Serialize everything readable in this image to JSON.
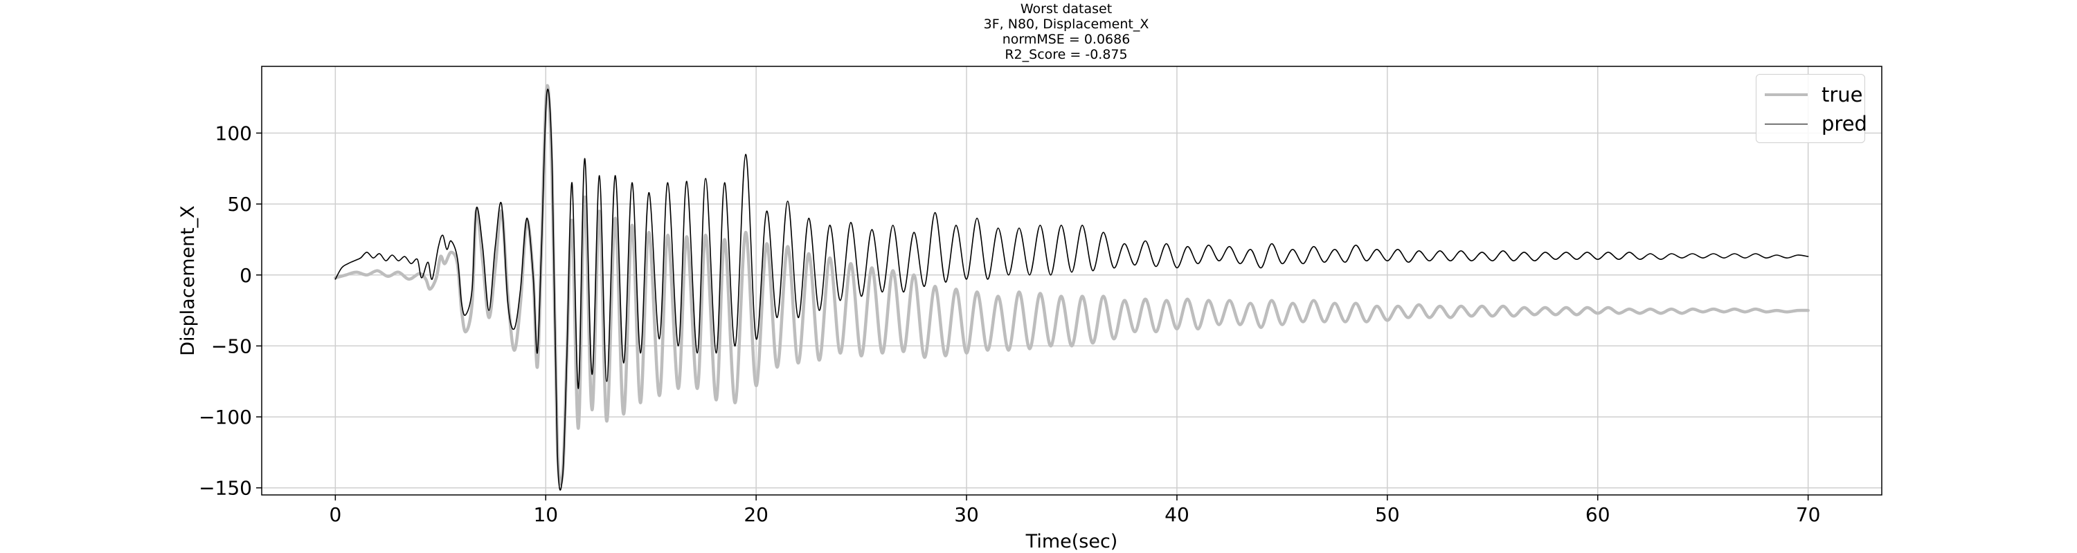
{
  "chart_data": {
    "type": "line",
    "title_lines": [
      "Worst dataset",
      "3F, N80, Displacement_X",
      "normMSE = 0.0686",
      "R2_Score = -0.875"
    ],
    "xlabel": "Time(sec)",
    "ylabel": "Displacement_X",
    "xlim": [
      -3.5,
      73.5
    ],
    "ylim": [
      -155,
      147
    ],
    "xticks": [
      0,
      10,
      20,
      30,
      40,
      50,
      60,
      70
    ],
    "yticks": [
      -150,
      -100,
      -50,
      0,
      50,
      100
    ],
    "ytick_labels": [
      "−150",
      "−100",
      "−50",
      "0",
      "50",
      "100"
    ],
    "grid": true,
    "legend_position": "top-right",
    "series": [
      {
        "name": "true",
        "color": "#bdbdbd",
        "points": [
          [
            0,
            -2
          ],
          [
            0.5,
            0
          ],
          [
            1,
            2
          ],
          [
            1.5,
            0
          ],
          [
            2,
            3
          ],
          [
            2.5,
            -1
          ],
          [
            3,
            2
          ],
          [
            3.5,
            -3
          ],
          [
            4,
            1
          ],
          [
            4.3,
            -3
          ],
          [
            4.5,
            -10
          ],
          [
            4.8,
            -2
          ],
          [
            5,
            13
          ],
          [
            5.2,
            8
          ],
          [
            5.5,
            16
          ],
          [
            5.8,
            8
          ],
          [
            6,
            -25
          ],
          [
            6.2,
            -40
          ],
          [
            6.5,
            -20
          ],
          [
            6.7,
            45
          ],
          [
            7,
            10
          ],
          [
            7.3,
            -30
          ],
          [
            7.6,
            5
          ],
          [
            7.9,
            45
          ],
          [
            8.2,
            -15
          ],
          [
            8.5,
            -53
          ],
          [
            8.8,
            -20
          ],
          [
            9.1,
            38
          ],
          [
            9.4,
            0
          ],
          [
            9.6,
            -65
          ],
          [
            9.8,
            20
          ],
          [
            10.05,
            132
          ],
          [
            10.3,
            70
          ],
          [
            10.55,
            -120
          ],
          [
            10.8,
            -140
          ],
          [
            11.0,
            -60
          ],
          [
            11.25,
            38
          ],
          [
            11.55,
            -108
          ],
          [
            11.85,
            55
          ],
          [
            12.2,
            -95
          ],
          [
            12.55,
            45
          ],
          [
            12.9,
            -103
          ],
          [
            13.3,
            40
          ],
          [
            13.7,
            -98
          ],
          [
            14.1,
            35
          ],
          [
            14.5,
            -90
          ],
          [
            14.9,
            30
          ],
          [
            15.4,
            -85
          ],
          [
            15.8,
            28
          ],
          [
            16.3,
            -80
          ],
          [
            16.7,
            27
          ],
          [
            17.2,
            -80
          ],
          [
            17.6,
            28
          ],
          [
            18.1,
            -88
          ],
          [
            18.5,
            25
          ],
          [
            19.0,
            -90
          ],
          [
            19.5,
            30
          ],
          [
            20.0,
            -78
          ],
          [
            20.5,
            22
          ],
          [
            21.0,
            -65
          ],
          [
            21.5,
            20
          ],
          [
            22.0,
            -62
          ],
          [
            22.5,
            15
          ],
          [
            23.0,
            -60
          ],
          [
            23.5,
            12
          ],
          [
            24.0,
            -55
          ],
          [
            24.5,
            8
          ],
          [
            25.0,
            -57
          ],
          [
            25.5,
            5
          ],
          [
            26.0,
            -55
          ],
          [
            26.5,
            3
          ],
          [
            27.0,
            -54
          ],
          [
            27.5,
            0
          ],
          [
            28.0,
            -58
          ],
          [
            28.5,
            -8
          ],
          [
            29.0,
            -57
          ],
          [
            29.5,
            -10
          ],
          [
            30.0,
            -55
          ],
          [
            30.5,
            -12
          ],
          [
            31.0,
            -53
          ],
          [
            31.5,
            -15
          ],
          [
            32.0,
            -53
          ],
          [
            32.5,
            -12
          ],
          [
            33.0,
            -52
          ],
          [
            33.5,
            -13
          ],
          [
            34.0,
            -50
          ],
          [
            34.5,
            -15
          ],
          [
            35.0,
            -50
          ],
          [
            35.5,
            -15
          ],
          [
            36.0,
            -48
          ],
          [
            36.5,
            -15
          ],
          [
            37.0,
            -45
          ],
          [
            37.5,
            -18
          ],
          [
            38.0,
            -40
          ],
          [
            38.5,
            -17
          ],
          [
            39.0,
            -40
          ],
          [
            39.5,
            -18
          ],
          [
            40.0,
            -38
          ],
          [
            40.5,
            -17
          ],
          [
            41.0,
            -38
          ],
          [
            41.5,
            -18
          ],
          [
            42.0,
            -35
          ],
          [
            42.5,
            -18
          ],
          [
            43.0,
            -35
          ],
          [
            43.5,
            -20
          ],
          [
            44.0,
            -37
          ],
          [
            44.5,
            -18
          ],
          [
            45.0,
            -35
          ],
          [
            45.5,
            -20
          ],
          [
            46.0,
            -33
          ],
          [
            46.5,
            -18
          ],
          [
            47.0,
            -33
          ],
          [
            47.5,
            -20
          ],
          [
            48.0,
            -33
          ],
          [
            48.5,
            -20
          ],
          [
            49.0,
            -33
          ],
          [
            49.5,
            -22
          ],
          [
            50.0,
            -32
          ],
          [
            50.5,
            -22
          ],
          [
            51.0,
            -30
          ],
          [
            51.5,
            -21
          ],
          [
            52.0,
            -30
          ],
          [
            52.5,
            -22
          ],
          [
            53.0,
            -30
          ],
          [
            53.5,
            -22
          ],
          [
            54.0,
            -29
          ],
          [
            54.5,
            -22
          ],
          [
            55.0,
            -29
          ],
          [
            55.5,
            -22
          ],
          [
            56.0,
            -29
          ],
          [
            56.5,
            -23
          ],
          [
            57.0,
            -28
          ],
          [
            57.5,
            -23
          ],
          [
            58.0,
            -28
          ],
          [
            58.5,
            -23
          ],
          [
            59.0,
            -28
          ],
          [
            59.5,
            -23
          ],
          [
            60.0,
            -27
          ],
          [
            60.5,
            -23
          ],
          [
            61.0,
            -27
          ],
          [
            61.5,
            -24
          ],
          [
            62.0,
            -27
          ],
          [
            62.5,
            -24
          ],
          [
            63.0,
            -27
          ],
          [
            63.5,
            -24
          ],
          [
            64.0,
            -27
          ],
          [
            64.5,
            -24
          ],
          [
            65.0,
            -26
          ],
          [
            65.5,
            -24
          ],
          [
            66.0,
            -26
          ],
          [
            66.5,
            -24
          ],
          [
            67.0,
            -26
          ],
          [
            67.5,
            -24
          ],
          [
            68.0,
            -26
          ],
          [
            68.5,
            -25
          ],
          [
            69.0,
            -26
          ],
          [
            69.5,
            -25
          ],
          [
            70.0,
            -25
          ]
        ]
      },
      {
        "name": "pred",
        "color": "#000000",
        "points": [
          [
            0,
            -3
          ],
          [
            0.3,
            5
          ],
          [
            0.6,
            8
          ],
          [
            0.9,
            10
          ],
          [
            1.2,
            12
          ],
          [
            1.5,
            16
          ],
          [
            1.8,
            12
          ],
          [
            2.1,
            15
          ],
          [
            2.4,
            10
          ],
          [
            2.7,
            14
          ],
          [
            3.0,
            10
          ],
          [
            3.3,
            13
          ],
          [
            3.6,
            8
          ],
          [
            3.9,
            11
          ],
          [
            4.1,
            -2
          ],
          [
            4.4,
            9
          ],
          [
            4.6,
            -3
          ],
          [
            4.9,
            20
          ],
          [
            5.1,
            28
          ],
          [
            5.3,
            18
          ],
          [
            5.5,
            24
          ],
          [
            5.8,
            12
          ],
          [
            6.0,
            -20
          ],
          [
            6.2,
            -28
          ],
          [
            6.5,
            -10
          ],
          [
            6.7,
            47
          ],
          [
            7.0,
            20
          ],
          [
            7.3,
            -25
          ],
          [
            7.6,
            20
          ],
          [
            7.9,
            50
          ],
          [
            8.2,
            -20
          ],
          [
            8.5,
            -38
          ],
          [
            8.8,
            -10
          ],
          [
            9.1,
            40
          ],
          [
            9.4,
            0
          ],
          [
            9.6,
            -55
          ],
          [
            9.8,
            20
          ],
          [
            10.05,
            128
          ],
          [
            10.3,
            80
          ],
          [
            10.55,
            -125
          ],
          [
            10.8,
            -142
          ],
          [
            11.0,
            -60
          ],
          [
            11.25,
            65
          ],
          [
            11.55,
            -80
          ],
          [
            11.85,
            82
          ],
          [
            12.2,
            -70
          ],
          [
            12.55,
            70
          ],
          [
            12.9,
            -75
          ],
          [
            13.3,
            70
          ],
          [
            13.7,
            -62
          ],
          [
            14.1,
            65
          ],
          [
            14.5,
            -55
          ],
          [
            14.9,
            58
          ],
          [
            15.4,
            -45
          ],
          [
            15.8,
            65
          ],
          [
            16.3,
            -50
          ],
          [
            16.7,
            66
          ],
          [
            17.2,
            -55
          ],
          [
            17.6,
            68
          ],
          [
            18.1,
            -55
          ],
          [
            18.5,
            65
          ],
          [
            19.0,
            -50
          ],
          [
            19.5,
            85
          ],
          [
            20.0,
            -45
          ],
          [
            20.5,
            45
          ],
          [
            21.0,
            -30
          ],
          [
            21.5,
            52
          ],
          [
            22.0,
            -30
          ],
          [
            22.5,
            40
          ],
          [
            23.0,
            -25
          ],
          [
            23.5,
            35
          ],
          [
            24.0,
            -18
          ],
          [
            24.5,
            37
          ],
          [
            25.0,
            -15
          ],
          [
            25.5,
            32
          ],
          [
            26.0,
            -12
          ],
          [
            26.5,
            35
          ],
          [
            27.0,
            -12
          ],
          [
            27.5,
            30
          ],
          [
            28.0,
            -8
          ],
          [
            28.5,
            44
          ],
          [
            29.0,
            -5
          ],
          [
            29.5,
            35
          ],
          [
            30.0,
            -3
          ],
          [
            30.5,
            40
          ],
          [
            31.0,
            -3
          ],
          [
            31.5,
            33
          ],
          [
            32.0,
            0
          ],
          [
            32.5,
            33
          ],
          [
            33.0,
            0
          ],
          [
            33.5,
            35
          ],
          [
            34.0,
            0
          ],
          [
            34.5,
            35
          ],
          [
            35.0,
            2
          ],
          [
            35.5,
            35
          ],
          [
            36.0,
            3
          ],
          [
            36.5,
            30
          ],
          [
            37.0,
            5
          ],
          [
            37.5,
            22
          ],
          [
            38.0,
            7
          ],
          [
            38.5,
            24
          ],
          [
            39.0,
            6
          ],
          [
            39.5,
            22
          ],
          [
            40.0,
            5
          ],
          [
            40.5,
            20
          ],
          [
            41.0,
            8
          ],
          [
            41.5,
            21
          ],
          [
            42.0,
            10
          ],
          [
            42.5,
            20
          ],
          [
            43.0,
            8
          ],
          [
            43.5,
            18
          ],
          [
            44.0,
            5
          ],
          [
            44.5,
            22
          ],
          [
            45.0,
            8
          ],
          [
            45.5,
            18
          ],
          [
            46.0,
            8
          ],
          [
            46.5,
            20
          ],
          [
            47.0,
            9
          ],
          [
            47.5,
            18
          ],
          [
            48.0,
            9
          ],
          [
            48.5,
            21
          ],
          [
            49.0,
            10
          ],
          [
            49.5,
            18
          ],
          [
            50.0,
            10
          ],
          [
            50.5,
            18
          ],
          [
            51.0,
            9
          ],
          [
            51.5,
            17
          ],
          [
            52.0,
            10
          ],
          [
            52.5,
            17
          ],
          [
            53.0,
            10
          ],
          [
            53.5,
            17
          ],
          [
            54.0,
            10
          ],
          [
            54.5,
            16
          ],
          [
            55.0,
            10
          ],
          [
            55.5,
            17
          ],
          [
            56.0,
            10
          ],
          [
            56.5,
            16
          ],
          [
            57.0,
            10
          ],
          [
            57.5,
            16
          ],
          [
            58.0,
            11
          ],
          [
            58.5,
            16
          ],
          [
            59.0,
            11
          ],
          [
            59.5,
            16
          ],
          [
            60.0,
            11
          ],
          [
            60.5,
            16
          ],
          [
            61.0,
            11
          ],
          [
            61.5,
            16
          ],
          [
            62.0,
            11
          ],
          [
            62.5,
            15
          ],
          [
            63.0,
            11
          ],
          [
            63.5,
            15
          ],
          [
            64.0,
            12
          ],
          [
            64.5,
            15
          ],
          [
            65.0,
            12
          ],
          [
            65.5,
            15
          ],
          [
            66.0,
            12
          ],
          [
            66.5,
            15
          ],
          [
            67.0,
            12
          ],
          [
            67.5,
            15
          ],
          [
            68.0,
            12
          ],
          [
            68.5,
            14
          ],
          [
            69.0,
            12
          ],
          [
            69.5,
            14
          ],
          [
            70.0,
            13
          ]
        ]
      }
    ]
  }
}
